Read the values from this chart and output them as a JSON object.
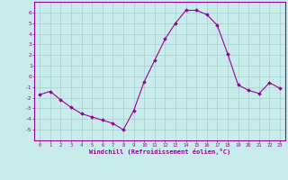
{
  "x": [
    0,
    1,
    2,
    3,
    4,
    5,
    6,
    7,
    8,
    9,
    10,
    11,
    12,
    13,
    14,
    15,
    16,
    17,
    18,
    19,
    20,
    21,
    22,
    23
  ],
  "y": [
    -1.7,
    -1.4,
    -2.2,
    -2.9,
    -3.5,
    -3.8,
    -4.1,
    -4.4,
    -5.0,
    -3.2,
    -0.5,
    1.5,
    3.5,
    5.0,
    6.2,
    6.2,
    5.8,
    4.8,
    2.1,
    -0.8,
    -1.3,
    -1.6,
    -0.6,
    -1.1
  ],
  "line_color": "#990099",
  "marker": "D",
  "marker_size": 1.8,
  "bg_color": "#c8ecec",
  "grid_color": "#aacccc",
  "xlabel": "Windchill (Refroidissement éolien,°C)",
  "xlabel_color": "#990099",
  "tick_color": "#990099",
  "ylim": [
    -6,
    7
  ],
  "yticks": [
    -5,
    -4,
    -3,
    -2,
    -1,
    0,
    1,
    2,
    3,
    4,
    5,
    6
  ],
  "xlim": [
    -0.5,
    23.5
  ],
  "xticks": [
    0,
    1,
    2,
    3,
    4,
    5,
    6,
    7,
    8,
    9,
    10,
    11,
    12,
    13,
    14,
    15,
    16,
    17,
    18,
    19,
    20,
    21,
    22,
    23
  ]
}
